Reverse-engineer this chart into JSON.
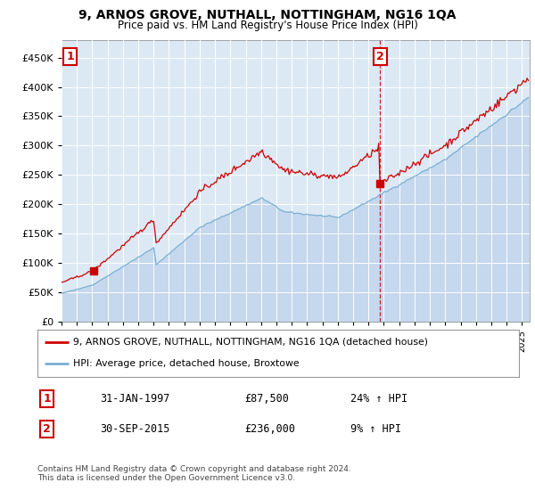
{
  "title": "9, ARNOS GROVE, NUTHALL, NOTTINGHAM, NG16 1QA",
  "subtitle": "Price paid vs. HM Land Registry's House Price Index (HPI)",
  "legend_line1": "9, ARNOS GROVE, NUTHALL, NOTTINGHAM, NG16 1QA (detached house)",
  "legend_line2": "HPI: Average price, detached house, Broxtowe",
  "annotation1_date": "31-JAN-1997",
  "annotation1_price": "£87,500",
  "annotation1_hpi": "24% ↑ HPI",
  "annotation2_date": "30-SEP-2015",
  "annotation2_price": "£236,000",
  "annotation2_hpi": "9% ↑ HPI",
  "footnote": "Contains HM Land Registry data © Crown copyright and database right 2024.\nThis data is licensed under the Open Government Licence v3.0.",
  "purchase1_year": 1997.083,
  "purchase1_value": 87500,
  "purchase2_year": 2015.75,
  "purchase2_value": 236000,
  "ylim_min": 0,
  "ylim_max": 480000,
  "xlim_min": 1995.0,
  "xlim_max": 2025.5,
  "background_color": "#dce9f5",
  "red_line_color": "#cc0000",
  "blue_line_color": "#7bafd4",
  "dashed_line_color": "#cc0000",
  "marker_color": "#cc0000",
  "grid_color": "#ffffff",
  "fill_color": "#c5d8ed"
}
